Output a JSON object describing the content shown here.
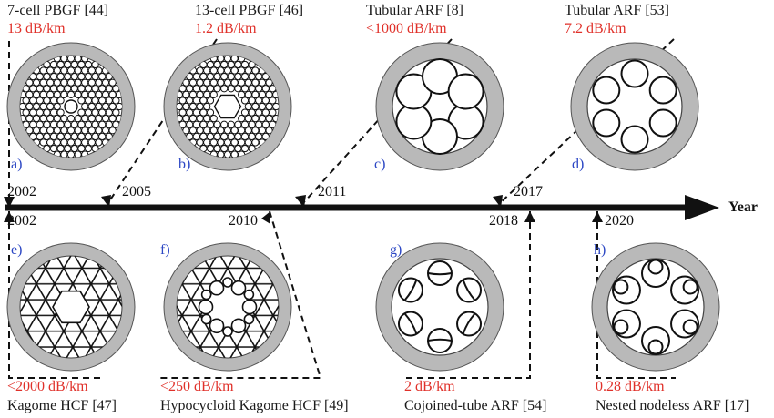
{
  "colors": {
    "loss": "#e0312a",
    "tag": "#2c47c4",
    "cladding": "#b9b9b9",
    "line": "#111111"
  },
  "axis": {
    "title": "Year"
  },
  "fibers": [
    {
      "id": "a",
      "tag": "a)",
      "name": "7-cell PBGF [44]",
      "loss": "13 dB/km",
      "year": "2002",
      "icon": "7-cell-pbgf-cross-section"
    },
    {
      "id": "b",
      "tag": "b)",
      "name": "13-cell PBGF [46]",
      "loss": "1.2 dB/km",
      "year": "2005",
      "icon": "13-cell-pbgf-cross-section"
    },
    {
      "id": "c",
      "tag": "c)",
      "name": "Tubular ARF [8]",
      "loss": "<1000 dB/km",
      "year": "2011",
      "icon": "tubular-arf-touching-cross-section"
    },
    {
      "id": "d",
      "tag": "d)",
      "name": "Tubular ARF [53]",
      "loss": "7.2 dB/km",
      "year": "2017",
      "icon": "tubular-arf-nodeless-cross-section"
    },
    {
      "id": "e",
      "tag": "e)",
      "name": "Kagome HCF [47]",
      "loss": "<2000 dB/km",
      "year": "2002",
      "icon": "kagome-hcf-cross-section"
    },
    {
      "id": "f",
      "tag": "f)",
      "name": "Hypocycloid Kagome HCF [49]",
      "loss": "<250 dB/km",
      "year": "2010",
      "icon": "hypocycloid-kagome-cross-section"
    },
    {
      "id": "g",
      "tag": "g)",
      "name": "Cojoined-tube ARF [54]",
      "loss": "2 dB/km",
      "year": "2018",
      "icon": "cojoined-tube-arf-cross-section"
    },
    {
      "id": "h",
      "tag": "h)",
      "name": "Nested nodeless ARF [17]",
      "loss": "0.28 dB/km",
      "year": "2020",
      "icon": "nested-nodeless-arf-cross-section"
    }
  ]
}
